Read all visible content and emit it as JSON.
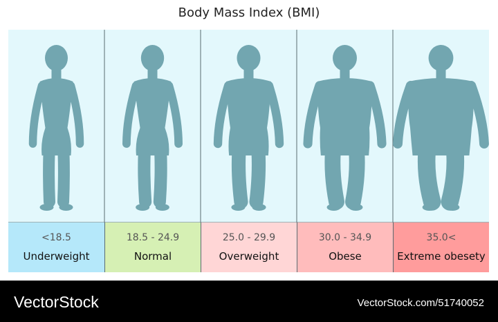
{
  "title": "Body Mass Index (BMI)",
  "colors": {
    "panel_bg": "#e3f8fc",
    "silhouette": "#72a6b0",
    "divider": "#5a6b70"
  },
  "categories": [
    {
      "range": "<18.5",
      "label": "Underweight",
      "color": "#b5e8fa",
      "width_factor": 1.0
    },
    {
      "range": "18.5 - 24.9",
      "label": "Normal",
      "color": "#d6f0b4",
      "width_factor": 1.12
    },
    {
      "range": "25.0 - 29.9",
      "label": "Overweight",
      "color": "#ffd6d6",
      "width_factor": 1.35
    },
    {
      "range": "30.0 - 34.9",
      "label": "Obese",
      "color": "#ffbcbc",
      "width_factor": 1.65
    },
    {
      "range": "35.0<",
      "label": "Extreme obesety",
      "color": "#ff9c9c",
      "width_factor": 1.95
    }
  ],
  "footer": {
    "brand": "VectorStock",
    "url": "VectorStock.com/51740052"
  }
}
